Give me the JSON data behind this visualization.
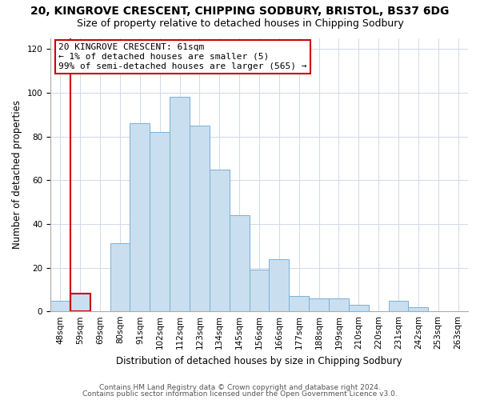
{
  "title": "20, KINGROVE CRESCENT, CHIPPING SODBURY, BRISTOL, BS37 6DG",
  "subtitle": "Size of property relative to detached houses in Chipping Sodbury",
  "xlabel": "Distribution of detached houses by size in Chipping Sodbury",
  "ylabel": "Number of detached properties",
  "bar_labels": [
    "48sqm",
    "59sqm",
    "69sqm",
    "80sqm",
    "91sqm",
    "102sqm",
    "112sqm",
    "123sqm",
    "134sqm",
    "145sqm",
    "156sqm",
    "166sqm",
    "177sqm",
    "188sqm",
    "199sqm",
    "210sqm",
    "220sqm",
    "231sqm",
    "242sqm",
    "253sqm",
    "263sqm"
  ],
  "bar_values": [
    5,
    8,
    0,
    31,
    86,
    82,
    98,
    85,
    65,
    44,
    19,
    24,
    7,
    6,
    6,
    3,
    0,
    5,
    2,
    0,
    0
  ],
  "bar_color": "#c9dff0",
  "bar_edge_color": "#7bafd4",
  "highlight_index": 1,
  "highlight_color": "#cc0000",
  "ylim": [
    0,
    125
  ],
  "yticks": [
    0,
    20,
    40,
    60,
    80,
    100,
    120
  ],
  "annotation_line1": "20 KINGROVE CRESCENT: 61sqm",
  "annotation_line2": "← 1% of detached houses are smaller (5)",
  "annotation_line3": "99% of semi-detached houses are larger (565) →",
  "annotation_box_color": "#ffffff",
  "annotation_box_edge_color": "#cc0000",
  "footnote1": "Contains HM Land Registry data © Crown copyright and database right 2024.",
  "footnote2": "Contains public sector information licensed under the Open Government Licence v3.0.",
  "title_fontsize": 10,
  "subtitle_fontsize": 9,
  "xlabel_fontsize": 8.5,
  "ylabel_fontsize": 8.5,
  "tick_fontsize": 7.5,
  "footnote_fontsize": 6.5,
  "annotation_fontsize": 8
}
